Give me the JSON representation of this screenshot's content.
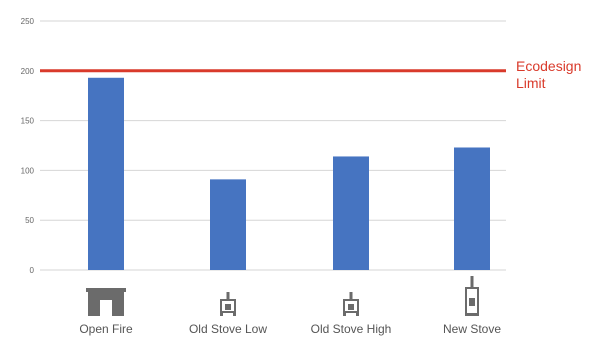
{
  "chart_data": {
    "type": "bar",
    "categories": [
      "Open Fire",
      "Old Stove Low",
      "Old Stove High",
      "New Stove"
    ],
    "category_icons": [
      "open-fire-icon",
      "old-stove-low-icon",
      "old-stove-high-icon",
      "new-stove-icon"
    ],
    "values": [
      193,
      91,
      114,
      123
    ],
    "ylim": [
      0,
      250
    ],
    "yticks": [
      0,
      50,
      100,
      150,
      200,
      250
    ],
    "grid": true,
    "reference_line": {
      "value": 200,
      "label_lines": [
        "Ecodesign",
        "Limit"
      ],
      "color": "#d93a2b"
    },
    "bar_color": "#4674c1",
    "title": "",
    "xlabel": "",
    "ylabel": ""
  }
}
